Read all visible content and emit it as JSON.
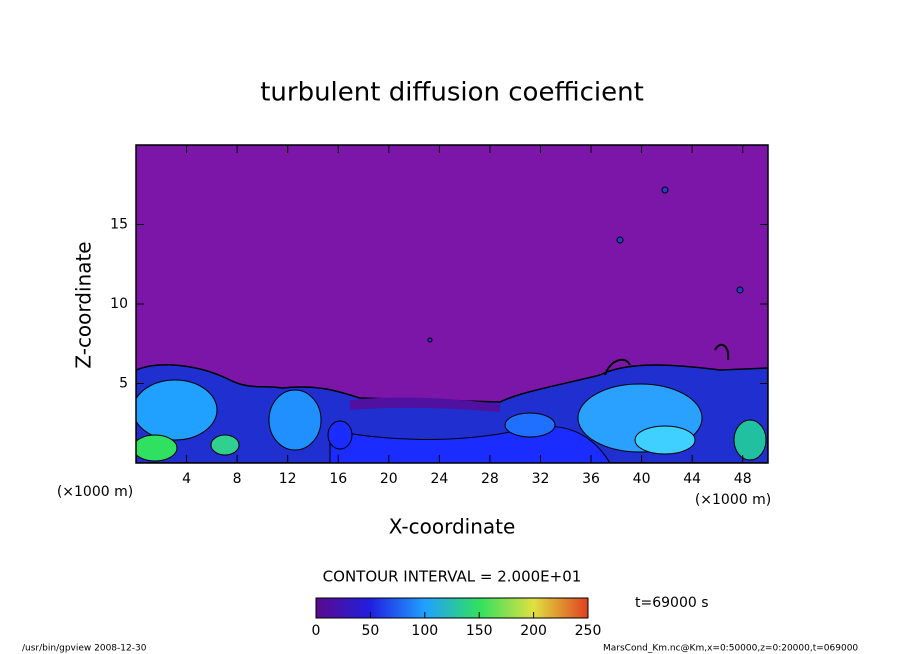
{
  "chart_data": {
    "type": "contour",
    "title": "turbulent diffusion coefficient",
    "xlabel": "X-coordinate",
    "ylabel": "Z-coordinate",
    "xunit": "(×1000 m)",
    "yunit": "(×1000 m)",
    "xlim": [
      0,
      50
    ],
    "ylim": [
      0,
      20
    ],
    "xticks": [
      4,
      8,
      12,
      16,
      20,
      24,
      28,
      32,
      36,
      40,
      44,
      48
    ],
    "yticks": [
      5,
      10,
      15
    ],
    "background": "#7b16a8",
    "colorbar": {
      "lim": [
        0,
        250
      ],
      "ticks": [
        0,
        50,
        100,
        150,
        200,
        250
      ],
      "colors": [
        "#5a0a8c",
        "#2020e0",
        "#20a0ff",
        "#30e060",
        "#e0e040",
        "#e04020"
      ]
    },
    "contour_interval": "CONTOUR INTERVAL = 2.000E+01",
    "time": "t=69000 s",
    "footer_left": "/usr/bin/gpview  2008-12-30",
    "footer_right": "MarsCond_Km.nc@Km,x=0:50000,z=0:20000,t=069000"
  }
}
